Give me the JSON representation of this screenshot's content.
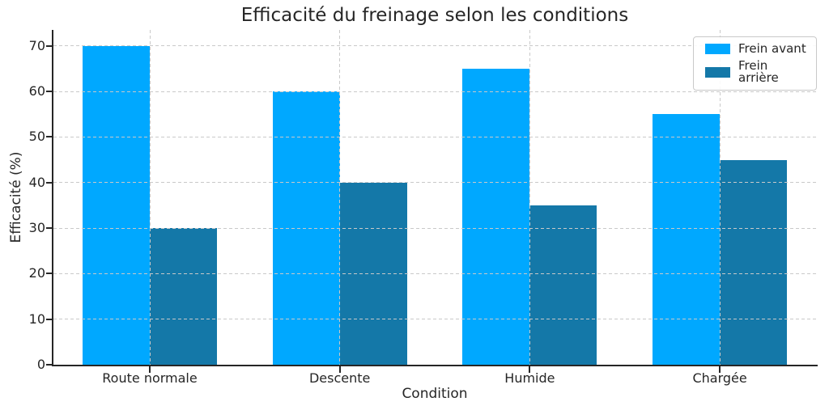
{
  "chart_data": {
    "type": "bar",
    "title": "Efficacité du freinage selon les conditions",
    "xlabel": "Condition",
    "ylabel": "Efficacité (%)",
    "categories": [
      "Route normale",
      "Descente",
      "Humide",
      "Chargée"
    ],
    "series": [
      {
        "name": "Frein avant",
        "color": "#00a8ff",
        "values": [
          70,
          60,
          65,
          55
        ]
      },
      {
        "name": "Frein arrière",
        "color": "#1478a8",
        "values": [
          30,
          40,
          35,
          45
        ]
      }
    ],
    "yticks": [
      0,
      10,
      20,
      30,
      40,
      50,
      60,
      70
    ],
    "ylim": [
      0,
      73.5
    ],
    "grid": true,
    "grid_style": "dashed",
    "grid_color": "#c9c9c9",
    "axis_color": "#262626",
    "legend_position": "upper right"
  }
}
